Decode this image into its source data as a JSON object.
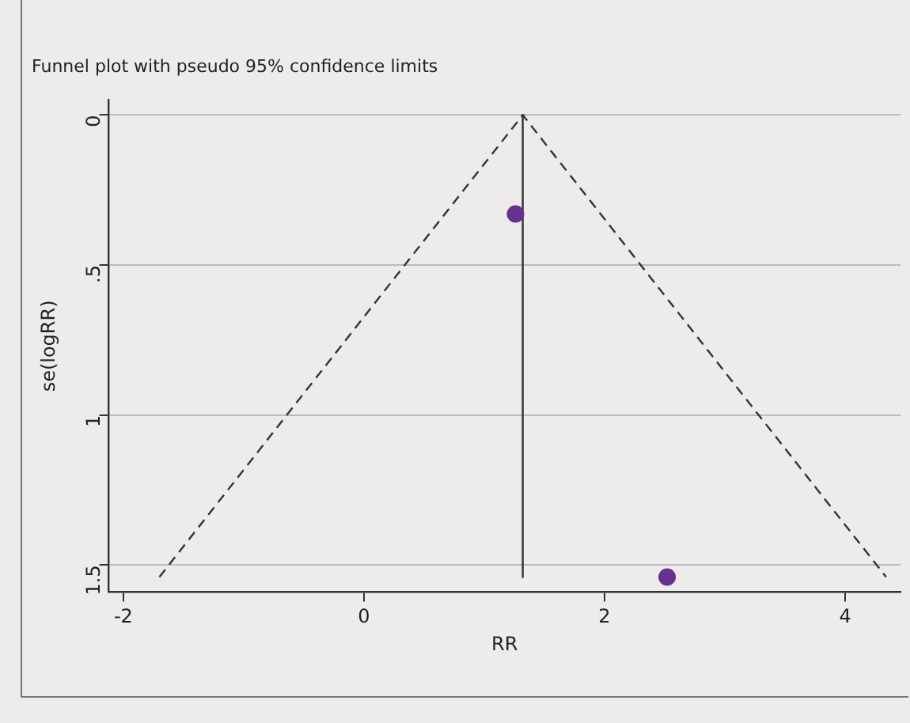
{
  "chart_data": {
    "type": "scatter",
    "title": "Funnel plot with pseudo 95% confidence limits",
    "xlabel": "RR",
    "ylabel": "se(logRR)",
    "xlim": [
      -2.12,
      4.46
    ],
    "xticks": [
      -2,
      0,
      2,
      4
    ],
    "ylim": [
      1.59,
      -0.05
    ],
    "yticks": [
      0,
      {
        "value": 0.5,
        "label": ".5"
      },
      1,
      1.5
    ],
    "grid": "y",
    "legend": false,
    "marker": "circle",
    "series": [
      {
        "x": [
          1.26,
          2.52
        ],
        "values": [
          0.33,
          1.54
        ],
        "color": "#66318f"
      },
      {
        "type": "line",
        "x": [
          1.32,
          1.32
        ],
        "values": [
          0,
          1.54
        ],
        "color": "#333333",
        "line_style": "solid",
        "marker": "none"
      },
      {
        "type": "line",
        "x": [
          -1.7,
          1.32,
          4.34
        ],
        "values": [
          1.54,
          0,
          1.54
        ],
        "color": "#333333",
        "line_style": "dashed",
        "marker": "none"
      }
    ]
  }
}
